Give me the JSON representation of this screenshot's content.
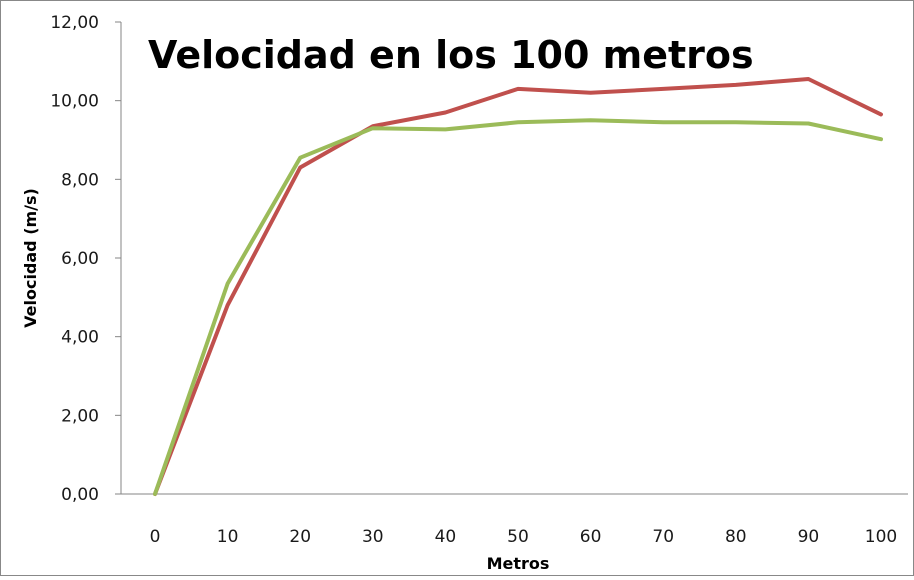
{
  "chart_data": {
    "type": "line",
    "title": "Velocidad en los 100 metros",
    "xlabel": "Metros",
    "ylabel": "Velocidad (m/s)",
    "x": [
      0,
      10,
      20,
      30,
      40,
      50,
      60,
      70,
      80,
      90,
      100
    ],
    "x_tick_labels": [
      "0",
      "10",
      "20",
      "30",
      "40",
      "50",
      "60",
      "70",
      "80",
      "90",
      "100"
    ],
    "ylim": [
      0,
      12
    ],
    "y_ticks": [
      0,
      2,
      4,
      6,
      8,
      10,
      12
    ],
    "y_tick_labels": [
      "0,00",
      "2,00",
      "4,00",
      "6,00",
      "8,00",
      "10,00",
      "12,00"
    ],
    "grid": false,
    "legend": "none",
    "series": [
      {
        "color": "#c0504d",
        "values": [
          0,
          4.8,
          8.3,
          9.35,
          9.7,
          10.3,
          10.2,
          10.3,
          10.4,
          10.55,
          9.65
        ]
      },
      {
        "color": "#9bbb59",
        "values": [
          0,
          5.35,
          8.55,
          9.3,
          9.27,
          9.45,
          9.5,
          9.45,
          9.45,
          9.42,
          9.02
        ]
      }
    ]
  }
}
